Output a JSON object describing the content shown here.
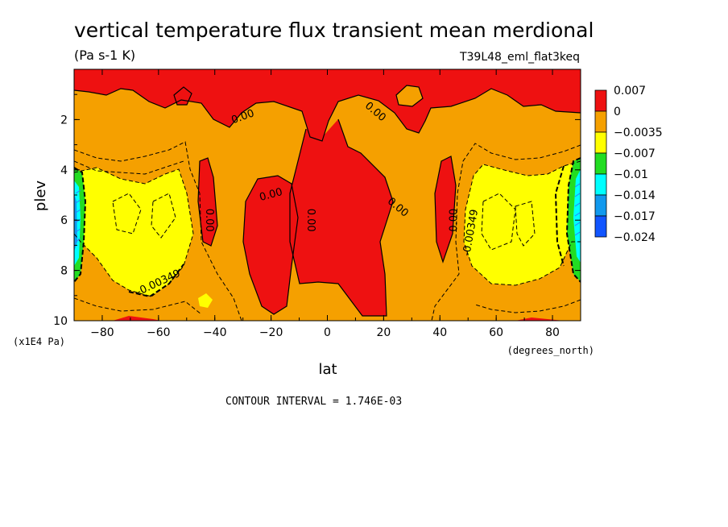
{
  "chart_data": {
    "type": "contour",
    "title": "vertical temperature flux transient mean merdional",
    "units": "(Pa s-1 K)",
    "dataset": "T39L48_eml_flat3keq",
    "xlabel": "lat",
    "x_units": "(degrees_north)",
    "ylabel": "plev",
    "y_units": "(x1E4 Pa)",
    "xlim": [
      -90,
      90
    ],
    "ylim": [
      10,
      0
    ],
    "x_ticks": [
      -80,
      -60,
      -40,
      -20,
      0,
      20,
      40,
      60,
      80
    ],
    "y_ticks": [
      2,
      4,
      6,
      8,
      10
    ],
    "contour_interval_text": "CONTOUR INTERVAL = 1.746E-03",
    "legend": {
      "placement": "right",
      "labels": [
        "0.007",
        "0",
        "−0.0035",
        "−0.007",
        "−0.01",
        "−0.014",
        "−0.017",
        "−0.024"
      ],
      "colors": [
        "#ee1111",
        "#f5a000",
        "#ffff00",
        "#22dd22",
        "#00ffff",
        "#1199ee",
        "#1155ff"
      ]
    },
    "contour_labels": [
      {
        "text": "0.00",
        "lat": -30,
        "plev": 1.9,
        "angle": -20
      },
      {
        "text": "0.00",
        "lat": 17,
        "plev": 1.7,
        "angle": 40
      },
      {
        "text": "0.00",
        "lat": -20,
        "plev": 5.0,
        "angle": -15
      },
      {
        "text": "0.00",
        "lat": 25,
        "plev": 5.5,
        "angle": 40
      },
      {
        "text": "0.00",
        "lat": -42,
        "plev": 6.0,
        "angle": 90
      },
      {
        "text": "0.00",
        "lat": -6,
        "plev": 6.0,
        "angle": 90
      },
      {
        "text": "0.00",
        "lat": 45,
        "plev": 6.0,
        "angle": -90
      },
      {
        "text": "-0.00349",
        "lat": 51,
        "plev": 6.5,
        "angle": -80
      },
      {
        "text": "-0.00349",
        "lat": -60,
        "plev": 8.5,
        "angle": -25
      }
    ]
  }
}
